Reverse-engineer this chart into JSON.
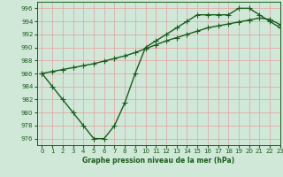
{
  "x": [
    0,
    1,
    2,
    3,
    4,
    5,
    6,
    7,
    8,
    9,
    10,
    11,
    12,
    13,
    14,
    15,
    16,
    17,
    18,
    19,
    20,
    21,
    22,
    23
  ],
  "line_jagged": [
    986,
    984,
    982,
    980,
    978,
    976,
    976,
    978,
    981.5,
    986,
    990,
    991,
    992,
    993,
    994,
    995,
    995,
    995,
    995,
    996,
    996,
    995,
    994,
    993
  ],
  "line_smooth": [
    986,
    986.3,
    986.6,
    986.9,
    987.2,
    987.5,
    987.9,
    988.3,
    988.7,
    989.2,
    989.8,
    990.4,
    991.0,
    991.5,
    992.0,
    992.5,
    993.0,
    993.3,
    993.6,
    993.9,
    994.2,
    994.5,
    994.3,
    993.5
  ],
  "xlabel": "Graphe pression niveau de la mer (hPa)",
  "ylim": [
    975,
    997
  ],
  "xlim": [
    -0.5,
    23
  ],
  "yticks": [
    976,
    978,
    980,
    982,
    984,
    986,
    988,
    990,
    992,
    994,
    996
  ],
  "xticks": [
    0,
    1,
    2,
    3,
    4,
    5,
    6,
    7,
    8,
    9,
    10,
    11,
    12,
    13,
    14,
    15,
    16,
    17,
    18,
    19,
    20,
    21,
    22,
    23
  ],
  "bg_color": "#cfe8d8",
  "grid_color": "#e8a0a0",
  "line_color": "#1a5c1a",
  "line_width": 1.0,
  "marker": "+",
  "marker_size": 4,
  "marker_lw": 0.8
}
